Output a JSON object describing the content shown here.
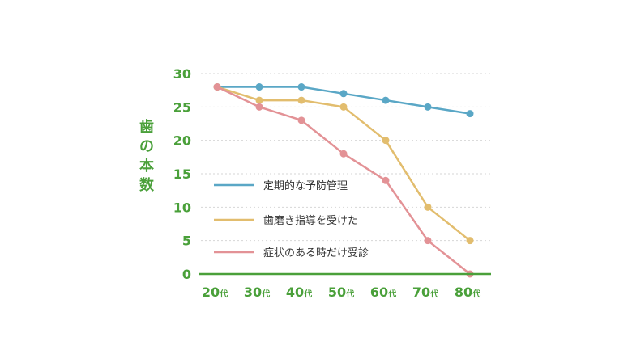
{
  "chart_data": {
    "type": "line",
    "ylabel": "歯の本数",
    "x_tick_labels": [
      {
        "num": "20",
        "suffix": "代"
      },
      {
        "num": "30",
        "suffix": "代"
      },
      {
        "num": "40",
        "suffix": "代"
      },
      {
        "num": "50",
        "suffix": "代"
      },
      {
        "num": "60",
        "suffix": "代"
      },
      {
        "num": "70",
        "suffix": "代"
      },
      {
        "num": "80",
        "suffix": "代"
      }
    ],
    "y_ticks": [
      "0",
      "5",
      "10",
      "15",
      "20",
      "25",
      "30"
    ],
    "ylim": [
      0,
      30
    ],
    "grid": "horizontal dotted",
    "legend_placement": "inside-left",
    "series": [
      {
        "name": "定期的な予防管理",
        "color": "#5aa7c6",
        "values": [
          28,
          28,
          28,
          27,
          26,
          25,
          24
        ]
      },
      {
        "name": "歯磨き指導を受けた",
        "color": "#e2bd6e",
        "values": [
          28,
          26,
          26,
          25,
          20,
          10,
          5
        ]
      },
      {
        "name": "症状のある時だけ受診",
        "color": "#e39296",
        "values": [
          28,
          25,
          23,
          18,
          14,
          5,
          0
        ]
      }
    ],
    "axis_color": "#4aa03a"
  }
}
